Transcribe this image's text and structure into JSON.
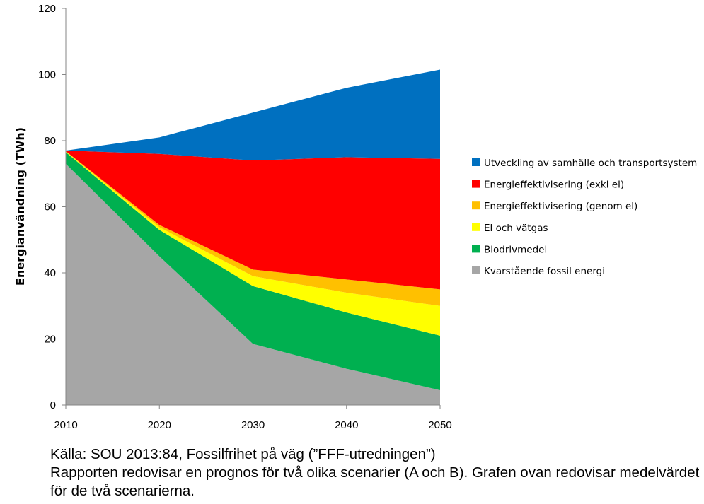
{
  "chart_data": {
    "type": "area",
    "stacked": true,
    "x": [
      2010,
      2020,
      2030,
      2040,
      2050
    ],
    "xlabel": "",
    "ylabel": "Energianvändning (TWh)",
    "ylim": [
      0,
      120
    ],
    "yticks": [
      0,
      20,
      40,
      60,
      80,
      100,
      120
    ],
    "xticks": [
      2010,
      2020,
      2030,
      2040,
      2050
    ],
    "grid": false,
    "legend_position": "right",
    "series": [
      {
        "name": "Kvarstående fossil energi",
        "color": "#a6a6a6",
        "values": [
          73,
          45,
          18.5,
          11,
          4.5
        ]
      },
      {
        "name": "Biodrivmedel",
        "color": "#00b050",
        "values": [
          3.5,
          8,
          17.5,
          17,
          16.5
        ]
      },
      {
        "name": "El och vätgas",
        "color": "#ffff00",
        "values": [
          0.2,
          0.8,
          3,
          6,
          9
        ]
      },
      {
        "name": "Energieffektivisering (genom el)",
        "color": "#ffc000",
        "values": [
          0.1,
          0.7,
          2,
          4,
          5
        ]
      },
      {
        "name": "Energieffektivisering (exkl el)",
        "color": "#ff0000",
        "values": [
          0.2,
          21.5,
          33,
          37,
          39.5
        ]
      },
      {
        "name": "Utveckling av samhälle och transportsystem",
        "color": "#0070c0",
        "values": [
          0,
          5,
          14.5,
          21,
          27
        ]
      }
    ]
  },
  "caption": {
    "source": "Källa: SOU 2013:84, Fossilfrihet på väg (”FFF-utredningen”)",
    "note": "Rapporten redovisar en prognos för två olika scenarier (A och B). Grafen ovan redovisar medelvärdet för de två scenarierna."
  }
}
